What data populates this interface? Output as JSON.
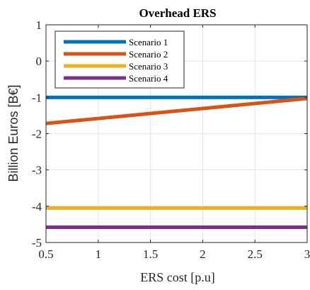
{
  "chart_data": {
    "type": "line",
    "title": "Overhead ERS",
    "xlabel": "ERS cost [p.u]",
    "ylabel": "Billion Euros [B€]",
    "xlim": [
      0.5,
      3
    ],
    "ylim": [
      -5,
      1
    ],
    "xticks": [
      0.5,
      1,
      1.5,
      2,
      2.5,
      3
    ],
    "xtick_labels": [
      "0.5",
      "1",
      "1.5",
      "2",
      "2.5",
      "3"
    ],
    "yticks": [
      1,
      0,
      -1,
      -2,
      -3,
      -4,
      -5
    ],
    "ytick_labels": [
      "1",
      "0",
      "-1",
      "-2",
      "-3",
      "-4",
      "-5"
    ],
    "grid": true,
    "legend_position": "top-left",
    "series": [
      {
        "name": "Scenario 1",
        "color": "#0072BD",
        "x": [
          0.5,
          3
        ],
        "y": [
          -1.0,
          -1.0
        ]
      },
      {
        "name": "Scenario 2",
        "color": "#D95319",
        "x": [
          0.5,
          3
        ],
        "y": [
          -1.72,
          -1.03
        ]
      },
      {
        "name": "Scenario 3",
        "color": "#EDB120",
        "x": [
          0.5,
          3
        ],
        "y": [
          -4.05,
          -4.05
        ]
      },
      {
        "name": "Scenario 4",
        "color": "#7E2F8E",
        "x": [
          0.5,
          3
        ],
        "y": [
          -4.58,
          -4.58
        ]
      }
    ]
  }
}
